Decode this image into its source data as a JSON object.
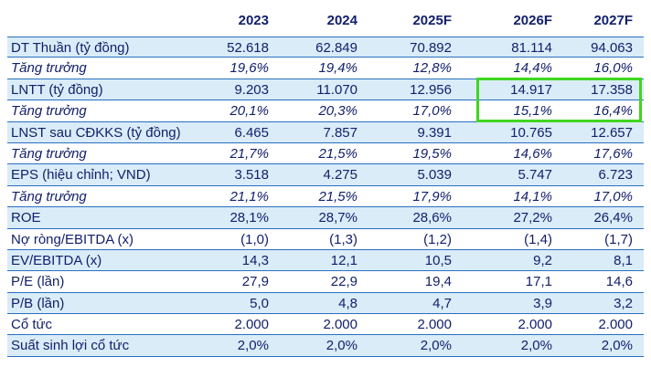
{
  "table": {
    "columns": [
      "2023",
      "2024",
      "2025F",
      "2026F",
      "2027F"
    ],
    "rows": [
      {
        "label": "DT Thuần (tỷ đồng)",
        "values": [
          "52.618",
          "62.849",
          "70.892",
          "81.114",
          "94.063"
        ],
        "shaded": true,
        "italic": false
      },
      {
        "label": "Tăng trưởng",
        "values": [
          "19,6%",
          "19,4%",
          "12,8%",
          "14,4%",
          "16,0%"
        ],
        "shaded": false,
        "italic": true
      },
      {
        "label": "LNTT (tỷ đồng)",
        "values": [
          "9.203",
          "11.070",
          "12.956",
          "14.917",
          "17.358"
        ],
        "shaded": true,
        "italic": false
      },
      {
        "label": "Tăng trưởng",
        "values": [
          "20,1%",
          "20,3%",
          "17,0%",
          "15,1%",
          "16,4%"
        ],
        "shaded": false,
        "italic": true
      },
      {
        "label": "LNST sau CĐKKS (tỷ đồng)",
        "values": [
          "6.465",
          "7.857",
          "9.391",
          "10.765",
          "12.657"
        ],
        "shaded": true,
        "italic": false
      },
      {
        "label": "Tăng trưởng",
        "values": [
          "21,7%",
          "21,5%",
          "19,5%",
          "14,6%",
          "17,6%"
        ],
        "shaded": false,
        "italic": true
      },
      {
        "label": "EPS (hiệu chỉnh; VND)",
        "values": [
          "3.518",
          "4.275",
          "5.039",
          "5.747",
          "6.723"
        ],
        "shaded": true,
        "italic": false
      },
      {
        "label": "Tăng trưởng",
        "values": [
          "21,1%",
          "21,5%",
          "17,9%",
          "14,1%",
          "17,0%"
        ],
        "shaded": false,
        "italic": true
      },
      {
        "label": "ROE",
        "values": [
          "28,1%",
          "28,7%",
          "28,6%",
          "27,2%",
          "26,4%"
        ],
        "shaded": true,
        "italic": false
      },
      {
        "label": "Nợ ròng/EBITDA (x)",
        "values": [
          "(1,0)",
          "(1,3)",
          "(1,2)",
          "(1,4)",
          "(1,7)"
        ],
        "shaded": false,
        "italic": false
      },
      {
        "label": "EV/EBITDA (x)",
        "values": [
          "14,3",
          "12,1",
          "10,5",
          "9,2",
          "8,1"
        ],
        "shaded": true,
        "italic": false
      },
      {
        "label": "P/E (lần)",
        "values": [
          "27,9",
          "22,9",
          "19,4",
          "17,1",
          "14,6"
        ],
        "shaded": false,
        "italic": false
      },
      {
        "label": "P/B (lần)",
        "values": [
          "5,0",
          "4,8",
          "4,7",
          "3,9",
          "3,2"
        ],
        "shaded": true,
        "italic": false
      },
      {
        "label": "Cổ tức",
        "values": [
          "2.000",
          "2.000",
          "2.000",
          "2.000",
          "2.000"
        ],
        "shaded": false,
        "italic": false
      },
      {
        "label": "Suất sinh lợi cổ tức",
        "values": [
          "2,0%",
          "2,0%",
          "2,0%",
          "2,0%",
          "2,0%"
        ],
        "shaded": true,
        "italic": false
      }
    ]
  },
  "colors": {
    "text": "#13206b",
    "row_shade": "#d9ecf8",
    "rule": "#2a6fc0",
    "highlight": "#3fd61f"
  }
}
